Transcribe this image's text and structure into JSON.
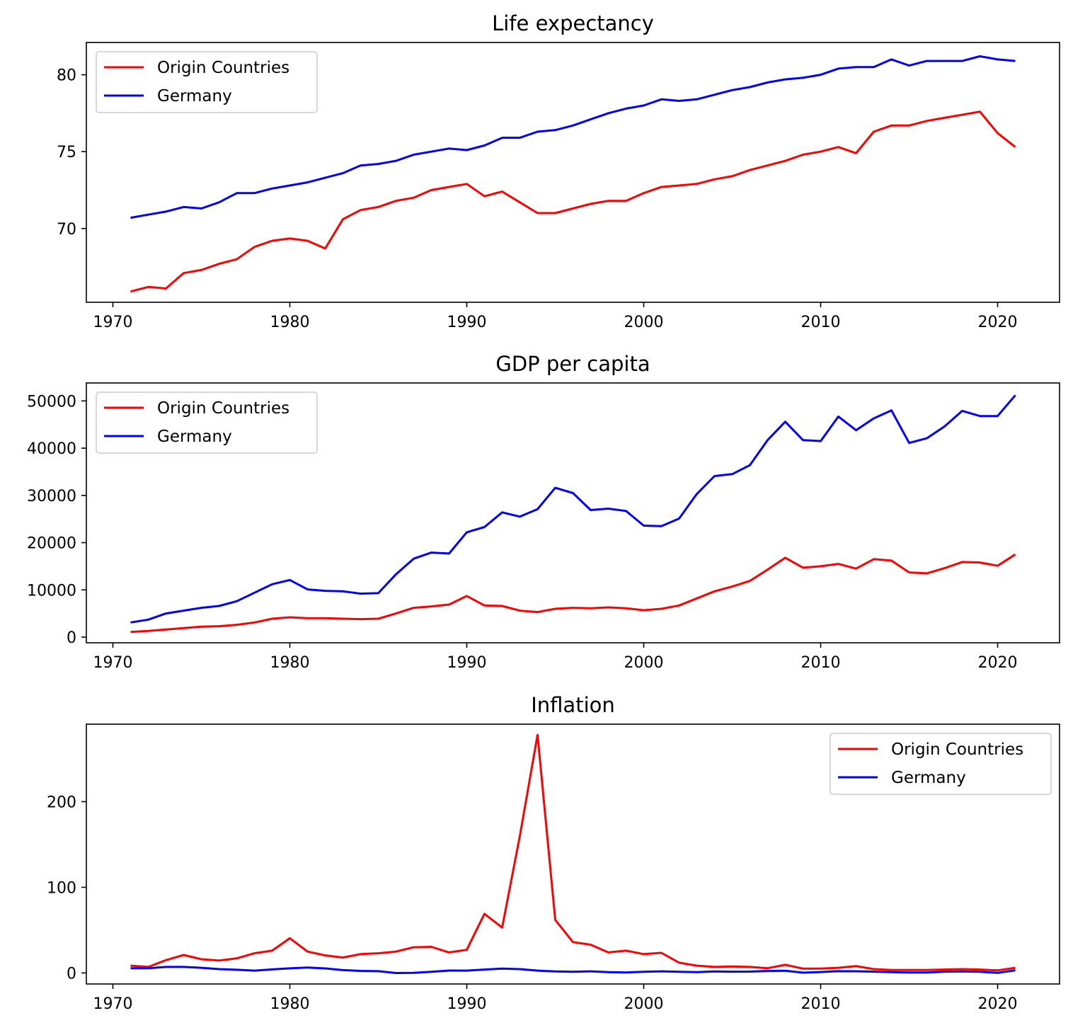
{
  "colors": {
    "Origin Countries": "#ff0000",
    "Germany": "#0000ff"
  },
  "chart_data": [
    {
      "type": "line",
      "title": "Life expectancy",
      "xlabel": "",
      "ylabel": "",
      "xlim": [
        1968.5,
        2023.5
      ],
      "ylim": [
        65.2,
        82.1
      ],
      "xticks": [
        1970,
        1980,
        1990,
        2000,
        2010,
        2020
      ],
      "yticks": [
        70,
        75,
        80
      ],
      "legend": "upper left",
      "grid": false,
      "x": [
        1971,
        1972,
        1973,
        1974,
        1975,
        1976,
        1977,
        1978,
        1979,
        1980,
        1981,
        1982,
        1983,
        1984,
        1985,
        1986,
        1987,
        1988,
        1989,
        1990,
        1991,
        1992,
        1993,
        1994,
        1995,
        1996,
        1997,
        1998,
        1999,
        2000,
        2001,
        2002,
        2003,
        2004,
        2005,
        2006,
        2007,
        2008,
        2009,
        2010,
        2011,
        2012,
        2013,
        2014,
        2015,
        2016,
        2017,
        2018,
        2019,
        2020,
        2021
      ],
      "series": [
        {
          "name": "Origin Countries",
          "values": [
            65.9,
            66.2,
            66.1,
            67.1,
            67.3,
            67.7,
            68.0,
            68.8,
            69.2,
            69.35,
            69.2,
            68.7,
            70.6,
            71.2,
            71.4,
            71.8,
            72.0,
            72.5,
            72.7,
            72.9,
            72.1,
            72.4,
            71.7,
            71.0,
            71.0,
            71.3,
            71.6,
            71.8,
            71.8,
            72.3,
            72.7,
            72.8,
            72.9,
            73.2,
            73.4,
            73.8,
            74.1,
            74.4,
            74.8,
            75.0,
            75.3,
            74.9,
            76.3,
            76.7,
            76.7,
            77.0,
            77.2,
            77.4,
            77.6,
            76.2,
            75.3
          ]
        },
        {
          "name": "Germany",
          "values": [
            70.7,
            70.9,
            71.1,
            71.4,
            71.3,
            71.7,
            72.3,
            72.3,
            72.6,
            72.8,
            73.0,
            73.3,
            73.6,
            74.1,
            74.2,
            74.4,
            74.8,
            75.0,
            75.2,
            75.1,
            75.4,
            75.9,
            75.9,
            76.3,
            76.4,
            76.7,
            77.1,
            77.5,
            77.8,
            78.0,
            78.4,
            78.3,
            78.4,
            78.7,
            79.0,
            79.2,
            79.5,
            79.7,
            79.8,
            80.0,
            80.4,
            80.5,
            80.5,
            81.0,
            80.6,
            80.9,
            80.9,
            80.9,
            81.2,
            81.0,
            80.9
          ]
        }
      ]
    },
    {
      "type": "line",
      "title": "GDP per capita",
      "xlabel": "",
      "ylabel": "",
      "xlim": [
        1968.5,
        2023.5
      ],
      "ylim": [
        -1200,
        53800
      ],
      "xticks": [
        1970,
        1980,
        1990,
        2000,
        2010,
        2020
      ],
      "yticks": [
        0,
        10000,
        20000,
        30000,
        40000,
        50000
      ],
      "legend": "upper left",
      "grid": false,
      "x": [
        1971,
        1972,
        1973,
        1974,
        1975,
        1976,
        1977,
        1978,
        1979,
        1980,
        1981,
        1982,
        1983,
        1984,
        1985,
        1986,
        1987,
        1988,
        1989,
        1990,
        1991,
        1992,
        1993,
        1994,
        1995,
        1996,
        1997,
        1998,
        1999,
        2000,
        2001,
        2002,
        2003,
        2004,
        2005,
        2006,
        2007,
        2008,
        2009,
        2010,
        2011,
        2012,
        2013,
        2014,
        2015,
        2016,
        2017,
        2018,
        2019,
        2020,
        2021
      ],
      "series": [
        {
          "name": "Origin Countries",
          "values": [
            1100,
            1300,
            1600,
            1900,
            2200,
            2300,
            2600,
            3100,
            3900,
            4200,
            4000,
            4000,
            3900,
            3800,
            3900,
            5000,
            6200,
            6500,
            6900,
            8700,
            6700,
            6600,
            5600,
            5300,
            6000,
            6200,
            6100,
            6300,
            6100,
            5700,
            6000,
            6700,
            8200,
            9700,
            10700,
            11900,
            14300,
            16800,
            14700,
            15000,
            15500,
            14500,
            16500,
            16200,
            13700,
            13500,
            14600,
            15900,
            15800,
            15100,
            17500
          ]
        },
        {
          "name": "Germany",
          "values": [
            3100,
            3700,
            5000,
            5600,
            6200,
            6600,
            7600,
            9400,
            11200,
            12100,
            10100,
            9800,
            9700,
            9200,
            9300,
            13300,
            16600,
            17900,
            17700,
            22200,
            23300,
            26400,
            25500,
            27100,
            31600,
            30500,
            26900,
            27200,
            26700,
            23600,
            23500,
            25100,
            30300,
            34100,
            34500,
            36400,
            41700,
            45600,
            41700,
            41500,
            46700,
            43800,
            46300,
            48000,
            41100,
            42100,
            44600,
            47900,
            46800,
            46800,
            51200
          ]
        }
      ]
    },
    {
      "type": "line",
      "title": "Inflation",
      "xlabel": "",
      "ylabel": "",
      "xlim": [
        1968.5,
        2023.5
      ],
      "ylim": [
        -12.9,
        290.5
      ],
      "xticks": [
        1970,
        1980,
        1990,
        2000,
        2010,
        2020
      ],
      "yticks": [
        0,
        100,
        200
      ],
      "legend": "upper right",
      "grid": false,
      "x": [
        1971,
        1972,
        1973,
        1974,
        1975,
        1976,
        1977,
        1978,
        1979,
        1980,
        1981,
        1982,
        1983,
        1984,
        1985,
        1986,
        1987,
        1988,
        1989,
        1990,
        1991,
        1992,
        1993,
        1994,
        1995,
        1996,
        1997,
        1998,
        1999,
        2000,
        2001,
        2002,
        2003,
        2004,
        2005,
        2006,
        2007,
        2008,
        2009,
        2010,
        2011,
        2012,
        2013,
        2014,
        2015,
        2016,
        2017,
        2018,
        2019,
        2020,
        2021
      ],
      "series": [
        {
          "name": "Origin Countries",
          "values": [
            8.5,
            7.0,
            15.0,
            21.0,
            16.0,
            14.5,
            17.0,
            23.0,
            26.0,
            40.5,
            25.0,
            20.5,
            18.0,
            22.0,
            23.0,
            25.0,
            30.0,
            30.5,
            24.0,
            27.0,
            69.0,
            53.0,
            160.0,
            278.0,
            62.0,
            36.0,
            33.0,
            24.0,
            26.0,
            22.0,
            23.5,
            12.0,
            8.5,
            7.0,
            7.5,
            7.0,
            5.5,
            9.5,
            5.0,
            5.0,
            6.0,
            8.0,
            4.5,
            3.5,
            3.5,
            3.5,
            4.0,
            4.5,
            4.0,
            3.0,
            6.0
          ]
        },
        {
          "name": "Germany",
          "values": [
            5.5,
            5.5,
            7.0,
            7.0,
            6.0,
            4.5,
            3.7,
            2.7,
            4.1,
            5.4,
            6.3,
            5.3,
            3.3,
            2.4,
            2.1,
            -0.1,
            0.2,
            1.3,
            2.8,
            2.7,
            4.0,
            5.1,
            4.5,
            2.7,
            1.7,
            1.4,
            1.9,
            0.9,
            0.6,
            1.4,
            1.9,
            1.4,
            1.0,
            1.7,
            1.5,
            1.6,
            2.3,
            2.6,
            0.3,
            1.1,
            2.1,
            2.0,
            1.5,
            0.9,
            0.5,
            0.5,
            1.5,
            1.8,
            1.4,
            0.1,
            3.1
          ]
        }
      ]
    }
  ]
}
